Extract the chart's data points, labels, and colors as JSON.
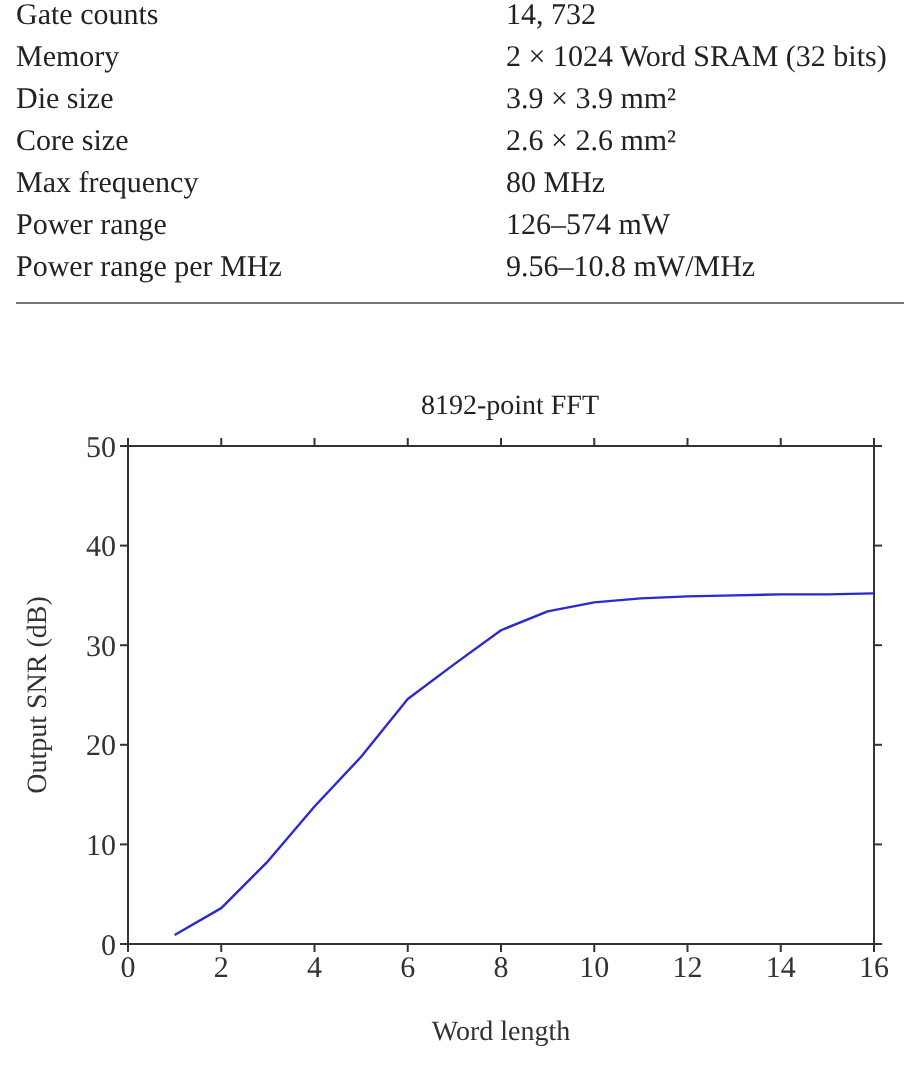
{
  "chart_data": {
    "type": "line",
    "title": "8192-point FFT",
    "xlabel": "Word length",
    "ylabel": "Output SNR (dB)",
    "annotations": [
      "Gate counts",
      "14, 732",
      "Memory",
      "2 × 1024 Word SRAM (32 bits)",
      "Die size",
      "3.9 × 3.9 mm²",
      "Core size",
      "2.6 × 2.6 mm²",
      "Max frequency",
      "80 MHz",
      "Power range",
      "126–574 mW",
      "Power range per MHz",
      "9.56–10.8 mW/MHz"
    ],
    "x": [
      1,
      2,
      3,
      4,
      5,
      6,
      7,
      8,
      9,
      10,
      11,
      12,
      13,
      14,
      15,
      16
    ],
    "series": [
      {
        "color": "#2a2ad0",
        "values": [
          0.9,
          3.6,
          8.3,
          13.8,
          18.8,
          24.6,
          28.1,
          31.5,
          33.4,
          34.3,
          34.7,
          34.9,
          35.0,
          35.1,
          35.1,
          35.2
        ]
      }
    ],
    "xlim": [
      0,
      16
    ],
    "xticks": [
      0,
      2,
      4,
      6,
      8,
      10,
      12,
      14,
      16
    ],
    "ylim": [
      0,
      50
    ],
    "yticks": [
      0,
      10,
      20,
      30,
      40,
      50
    ],
    "grid": false,
    "legend": false,
    "marker": "none",
    "line_style": "solid"
  }
}
